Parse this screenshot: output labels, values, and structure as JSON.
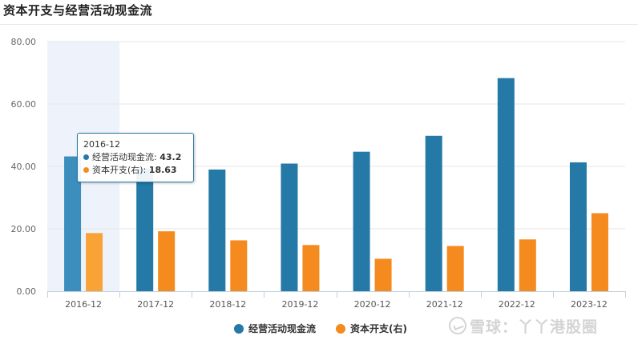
{
  "page": {
    "title": "资本开支与经营活动现金流",
    "watermark": "雪球：丫丫港股圈"
  },
  "chart_data": {
    "type": "bar",
    "categories": [
      "2016-12",
      "2017-12",
      "2018-12",
      "2019-12",
      "2020-12",
      "2021-12",
      "2022-12",
      "2023-12"
    ],
    "series": [
      {
        "name": "经营活动现金流",
        "color": "#2479a6",
        "values": [
          43.2,
          39.3,
          39.0,
          40.9,
          44.7,
          49.8,
          68.3,
          41.3
        ]
      },
      {
        "name": "资本开支(右)",
        "color": "#f58a1f",
        "values": [
          18.63,
          19.2,
          16.3,
          14.8,
          10.4,
          14.5,
          16.6,
          25.0
        ]
      }
    ],
    "yticks": [
      "0.00",
      "20.00",
      "40.00",
      "60.00",
      "80.00"
    ],
    "ylim": [
      0,
      80
    ],
    "grid": true,
    "legend": "bottom-center",
    "highlight_index": 0
  },
  "tooltip": {
    "category": "2016-12",
    "rows": [
      {
        "label": "经营活动现金流: ",
        "value": "43.2",
        "color": "#2479a6"
      },
      {
        "label": "资本开支(右): ",
        "value": "18.63",
        "color": "#f58a1f"
      }
    ]
  }
}
